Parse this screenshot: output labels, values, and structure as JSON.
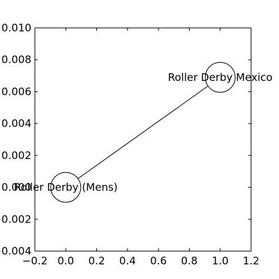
{
  "chart_data": {
    "type": "scatter",
    "xlim": [
      -0.2,
      1.2
    ],
    "ylim": [
      -0.004,
      0.01
    ],
    "x_ticks": [
      -0.2,
      0.0,
      0.2,
      0.4,
      0.6,
      0.8,
      1.0,
      1.2
    ],
    "x_tick_labels": [
      "−0.2",
      "0.0",
      "0.2",
      "0.4",
      "0.6",
      "0.8",
      "1.0",
      "1.2"
    ],
    "y_ticks": [
      0.01,
      0.008,
      0.006,
      0.004,
      0.002,
      0.0,
      -0.002,
      -0.004
    ],
    "y_tick_labels": [
      "0.010",
      "0.008",
      "0.006",
      "0.004",
      "0.002",
      "0.000",
      "−0.002",
      "−0.004"
    ],
    "grid": false,
    "nodes": [
      {
        "id": "mens",
        "label": "Roller Derby (Mens)",
        "x": 0.0,
        "y": 0.0
      },
      {
        "id": "mexico",
        "label": "Roller Derby Mexico",
        "x": 1.0,
        "y": 0.0069
      }
    ],
    "edges": [
      {
        "source": "mens",
        "target": "mexico"
      }
    ],
    "colors": {
      "axis": "#000000",
      "edge": "#000000",
      "node_fill": "#ffffff",
      "node_stroke": "#000000"
    }
  }
}
